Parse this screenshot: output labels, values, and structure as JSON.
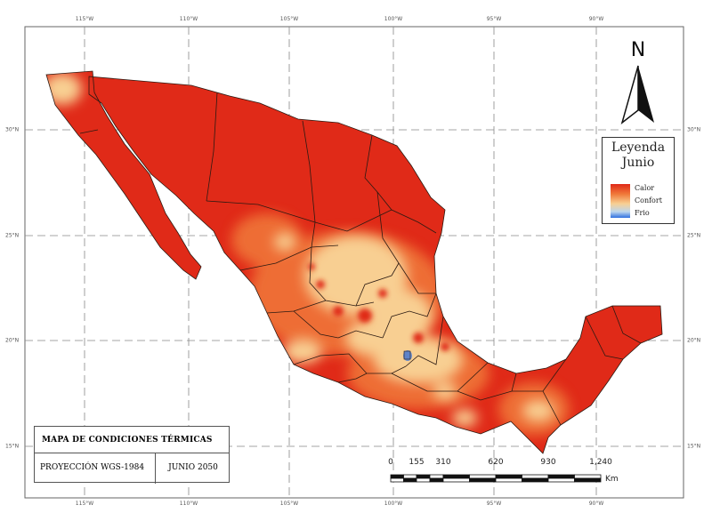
{
  "map": {
    "colors": {
      "ocean": "#ffffff",
      "calor": "#e02a18",
      "calor_light": "#f07a3a",
      "confort": "#f8cf92",
      "frio": "#2f6fe0",
      "boundaries": "#2b1a12"
    },
    "graticule": {
      "top": [
        "115°W",
        "110°W",
        "105°W",
        "100°W",
        "95°W",
        "90°W"
      ],
      "bottom": [
        "115°W",
        "110°W",
        "105°W",
        "100°W",
        "95°W",
        "90°W"
      ],
      "left": [
        "30°N",
        "25°N",
        "20°N",
        "15°N"
      ],
      "right": [
        "30°N",
        "25°N",
        "20°N",
        "15°N"
      ]
    }
  },
  "north_arrow": {
    "label": "N"
  },
  "legend": {
    "title": "Leyenda",
    "subtitle": "Junio",
    "items": [
      {
        "label": "Calor",
        "color": "#e02a18"
      },
      {
        "label": "Confort",
        "color": "#f8cf92"
      },
      {
        "label": "Frio",
        "color": "#2f6fe0"
      }
    ]
  },
  "title_box": {
    "title": "MAPA DE CONDICIONES TÉRMICAS",
    "projection": "PROYECCIÓN WGS-1984",
    "date": "JUNIO 2050"
  },
  "scale_bar": {
    "ticks": [
      "0",
      "155",
      "310",
      "620",
      "930",
      "1,240"
    ],
    "unit": "Km"
  }
}
